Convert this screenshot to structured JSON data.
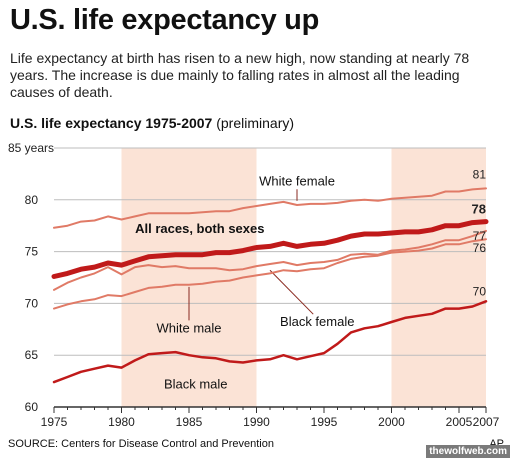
{
  "header": {
    "title": "U.S. life expectancy up",
    "description": "Life expectancy at birth has risen to a new high, now standing at nearly 78 years. The increase is due mainly to falling rates in almost all the leading causes of death."
  },
  "chart_data": {
    "type": "line",
    "title": "U.S. life expectancy 1975-2007",
    "subtitle": "(preliminary)",
    "xlabel": "",
    "ylabel": "",
    "y_unit_label": "85 years",
    "xlim": [
      1975,
      2007
    ],
    "ylim": [
      60,
      85
    ],
    "x_ticks": [
      1975,
      1980,
      1985,
      1990,
      1995,
      2000,
      2005,
      2007
    ],
    "y_ticks": [
      60,
      65,
      70,
      75,
      80
    ],
    "shaded_ranges": [
      [
        1980,
        1990
      ],
      [
        2000,
        2007
      ]
    ],
    "grid": true,
    "x": [
      1975,
      1976,
      1977,
      1978,
      1979,
      1980,
      1981,
      1982,
      1983,
      1984,
      1985,
      1986,
      1987,
      1988,
      1989,
      1990,
      1991,
      1992,
      1993,
      1994,
      1995,
      1996,
      1997,
      1998,
      1999,
      2000,
      2001,
      2002,
      2003,
      2004,
      2005,
      2006,
      2007
    ],
    "series": [
      {
        "name": "White female",
        "color": "#e07a66",
        "width": 2,
        "end_label": "81",
        "values": [
          77.3,
          77.5,
          77.9,
          78.0,
          78.4,
          78.1,
          78.4,
          78.7,
          78.7,
          78.7,
          78.7,
          78.8,
          78.9,
          78.9,
          79.2,
          79.4,
          79.6,
          79.8,
          79.5,
          79.6,
          79.6,
          79.7,
          79.9,
          80.0,
          79.9,
          80.1,
          80.2,
          80.3,
          80.4,
          80.8,
          80.8,
          81.0,
          81.1
        ]
      },
      {
        "name": "All races, both sexes",
        "color": "#c01a1a",
        "width": 5,
        "end_label": "78",
        "values": [
          72.6,
          72.9,
          73.3,
          73.5,
          73.9,
          73.7,
          74.1,
          74.5,
          74.6,
          74.7,
          74.7,
          74.7,
          74.9,
          74.9,
          75.1,
          75.4,
          75.5,
          75.8,
          75.5,
          75.7,
          75.8,
          76.1,
          76.5,
          76.7,
          76.7,
          76.8,
          76.9,
          76.9,
          77.1,
          77.5,
          77.5,
          77.8,
          77.9
        ]
      },
      {
        "name": "White male",
        "color": "#e07a66",
        "width": 2,
        "end_label": "76",
        "values": [
          69.5,
          69.9,
          70.2,
          70.4,
          70.8,
          70.7,
          71.1,
          71.5,
          71.6,
          71.8,
          71.8,
          71.9,
          72.1,
          72.2,
          72.5,
          72.7,
          72.9,
          73.2,
          73.1,
          73.3,
          73.4,
          73.9,
          74.3,
          74.5,
          74.6,
          74.9,
          75.0,
          75.1,
          75.3,
          75.7,
          75.7,
          76.0,
          76.2
        ]
      },
      {
        "name": "Black female",
        "color": "#e07a66",
        "width": 2,
        "end_label": "77",
        "values": [
          71.3,
          72.0,
          72.5,
          72.9,
          73.5,
          72.8,
          73.5,
          73.7,
          73.5,
          73.6,
          73.4,
          73.4,
          73.4,
          73.2,
          73.3,
          73.6,
          73.8,
          74.0,
          73.7,
          73.9,
          74.0,
          74.2,
          74.7,
          74.8,
          74.7,
          75.1,
          75.2,
          75.4,
          75.7,
          76.1,
          76.1,
          76.5,
          77.0
        ]
      },
      {
        "name": "Black male",
        "color": "#c01a1a",
        "width": 2.5,
        "end_label": "70",
        "values": [
          62.4,
          62.9,
          63.4,
          63.7,
          64.0,
          63.8,
          64.5,
          65.1,
          65.2,
          65.3,
          65.0,
          64.8,
          64.7,
          64.4,
          64.3,
          64.5,
          64.6,
          65.0,
          64.6,
          64.9,
          65.2,
          66.1,
          67.2,
          67.6,
          67.8,
          68.2,
          68.6,
          68.8,
          69.0,
          69.5,
          69.5,
          69.7,
          70.2
        ]
      }
    ],
    "annotations": [
      {
        "text": "White female",
        "series": 0,
        "x": 1993,
        "y": 81.4,
        "bold": false,
        "leader": [
          1993,
          79.9
        ]
      },
      {
        "text": "All races, both sexes",
        "series": 1,
        "x": 1985.8,
        "y": 76.8,
        "bold": true,
        "leader": null
      },
      {
        "text": "White male",
        "series": 2,
        "x": 1985,
        "y": 67.2,
        "bold": false,
        "leader": [
          1985,
          71.6
        ]
      },
      {
        "text": "Black female",
        "series": 3,
        "x": 1994.5,
        "y": 67.8,
        "bold": false,
        "leader": [
          1991,
          73.2
        ]
      },
      {
        "text": "Black male",
        "series": 4,
        "x": 1985.5,
        "y": 61.8,
        "bold": false,
        "leader": null
      }
    ],
    "colors": {
      "shade": "#fbe3d6",
      "grid": "#bdbdbd",
      "axis": "#333333"
    }
  },
  "footer": {
    "source": "SOURCE: Centers for Disease Control and Prevention",
    "credit": "AP",
    "watermark": "thewolfweb.com"
  }
}
